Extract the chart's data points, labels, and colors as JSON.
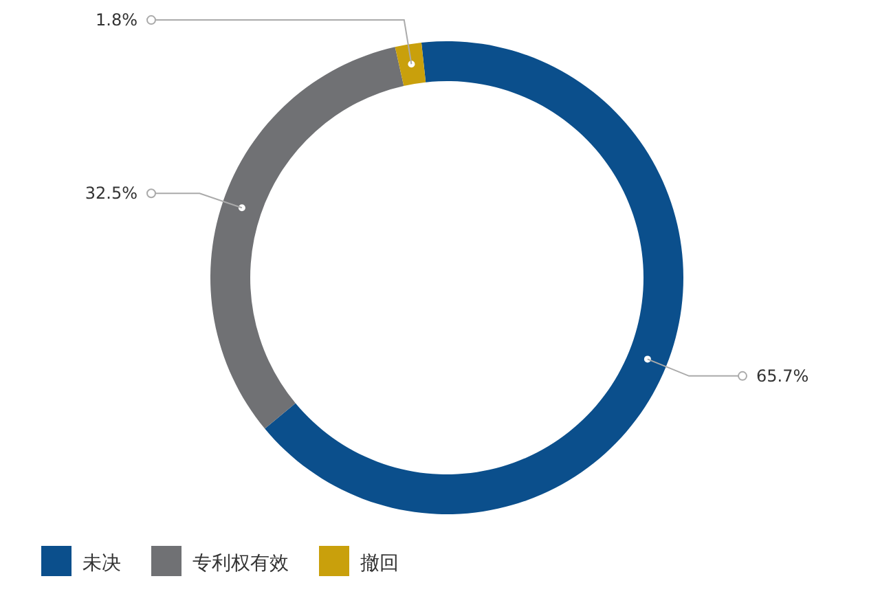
{
  "chart_data": {
    "type": "donut",
    "categories": [
      "未决",
      "专利权有效",
      "撤回"
    ],
    "values": [
      65.7,
      32.5,
      1.8
    ],
    "value_labels": [
      "65.7%",
      "32.5%",
      "1.8%"
    ],
    "colors": [
      "#0b4f8c",
      "#707174",
      "#c9a00c"
    ],
    "legend": "bottom left"
  }
}
